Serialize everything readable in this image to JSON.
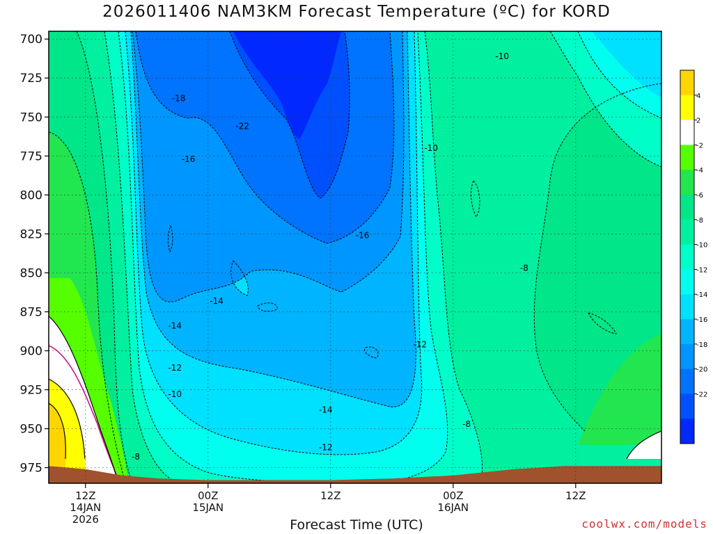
{
  "page": {
    "credit": "coolwx.com/models"
  },
  "colors": {
    "frame": "#000000",
    "terrain": "#a0522d",
    "warm_isotherm": "#c71585",
    "contour": "#000000",
    "credit": "#d23030"
  },
  "chart_data": {
    "type": "heatmap",
    "title": "2026011406 NAM3KM Forecast Temperature (ºC) for KORD",
    "xlabel": "Forecast Time (UTC)",
    "ylabel": "",
    "x_range_hours": [
      -3,
      47
    ],
    "y_range_hpa": [
      695,
      985
    ],
    "yticks": [
      700,
      725,
      750,
      775,
      800,
      825,
      850,
      875,
      900,
      925,
      950,
      975
    ],
    "xticks": [
      {
        "hour": 0,
        "lines": [
          "12Z",
          "14JAN",
          "2026"
        ]
      },
      {
        "hour": 10,
        "lines": [
          "00Z",
          "15JAN"
        ]
      },
      {
        "hour": 20,
        "lines": [
          "12Z"
        ]
      },
      {
        "hour": 30,
        "lines": [
          "00Z",
          "16JAN"
        ]
      },
      {
        "hour": 40,
        "lines": [
          "12Z"
        ]
      }
    ],
    "grid": true,
    "colorbar": {
      "placement": "right",
      "levels": [
        {
          "label": "",
          "color": "#ffd500"
        },
        {
          "label": "4",
          "color": "#ffff00"
        },
        {
          "label": "2",
          "color": "#ffffff"
        },
        {
          "label": "-2",
          "color": "#55ff00"
        },
        {
          "label": "-4",
          "color": "#22e650"
        },
        {
          "label": "-6",
          "color": "#00e688"
        },
        {
          "label": "-8",
          "color": "#00f0a0"
        },
        {
          "label": "-10",
          "color": "#00ffc8"
        },
        {
          "label": "-12",
          "color": "#00ffee"
        },
        {
          "label": "-14",
          "color": "#00e0ff"
        },
        {
          "label": "-16",
          "color": "#00b4ff"
        },
        {
          "label": "-18",
          "color": "#0096ff"
        },
        {
          "label": "-20",
          "color": "#0073ff"
        },
        {
          "label": "-22",
          "color": "#0050ff"
        },
        {
          "label": "",
          "color": "#0028ff"
        }
      ]
    },
    "contour_labels": [
      {
        "text": "-22",
        "hour": 12.8,
        "p": 756
      },
      {
        "text": "-18",
        "hour": 7.6,
        "p": 738
      },
      {
        "text": "-16",
        "hour": 8.4,
        "p": 777
      },
      {
        "text": "-16",
        "hour": 22.6,
        "p": 826
      },
      {
        "text": "-14",
        "hour": 10.7,
        "p": 868
      },
      {
        "text": "-14",
        "hour": 7.3,
        "p": 884
      },
      {
        "text": "-14",
        "hour": 19.6,
        "p": 938
      },
      {
        "text": "-12",
        "hour": 7.3,
        "p": 911
      },
      {
        "text": "-12",
        "hour": 19.6,
        "p": 962
      },
      {
        "text": "-12",
        "hour": 27.3,
        "p": 896
      },
      {
        "text": "-10",
        "hour": 7.3,
        "p": 928
      },
      {
        "text": "-10",
        "hour": 28.2,
        "p": 770
      },
      {
        "text": "-10",
        "hour": 34.0,
        "p": 711
      },
      {
        "text": "-8",
        "hour": 4.1,
        "p": 968
      },
      {
        "text": "-8",
        "hour": 31.1,
        "p": 947
      },
      {
        "text": "-8",
        "hour": 35.8,
        "p": 847
      }
    ],
    "terrain_surface": [
      {
        "hour": -3,
        "p": 974
      },
      {
        "hour": 0,
        "p": 976
      },
      {
        "hour": 3,
        "p": 980
      },
      {
        "hour": 6,
        "p": 982
      },
      {
        "hour": 10,
        "p": 983
      },
      {
        "hour": 15,
        "p": 983
      },
      {
        "hour": 20,
        "p": 983
      },
      {
        "hour": 25,
        "p": 982
      },
      {
        "hour": 30,
        "p": 980
      },
      {
        "hour": 35,
        "p": 976
      },
      {
        "hour": 39,
        "p": 974
      },
      {
        "hour": 47,
        "p": 974
      }
    ]
  }
}
